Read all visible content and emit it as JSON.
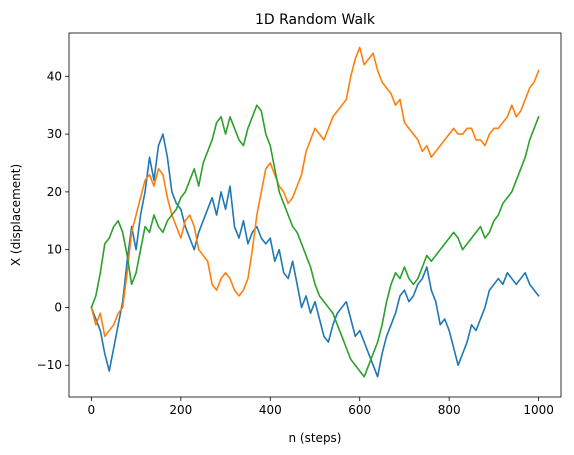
{
  "chart_data": {
    "type": "line",
    "title": "1D Random Walk",
    "xlabel": "n (steps)",
    "ylabel": "X (displacement)",
    "xlim": [
      -50,
      1050
    ],
    "ylim": [
      -15.5,
      47.5
    ],
    "xticks": [
      0,
      200,
      400,
      600,
      800,
      1000
    ],
    "yticks": [
      -10,
      0,
      10,
      20,
      30,
      40
    ],
    "ytick_labels": [
      "−10",
      "0",
      "10",
      "20",
      "30",
      "40"
    ],
    "grid": false,
    "legend": "none",
    "series": [
      {
        "color": "#1f77b4",
        "x": [
          0,
          10,
          20,
          30,
          40,
          50,
          60,
          70,
          80,
          90,
          100,
          110,
          120,
          130,
          140,
          150,
          160,
          170,
          180,
          190,
          200,
          210,
          220,
          230,
          240,
          250,
          260,
          270,
          280,
          290,
          300,
          310,
          320,
          330,
          340,
          350,
          360,
          370,
          380,
          390,
          400,
          410,
          420,
          430,
          440,
          450,
          460,
          470,
          480,
          490,
          500,
          510,
          520,
          530,
          540,
          550,
          560,
          570,
          580,
          590,
          600,
          610,
          620,
          630,
          640,
          650,
          660,
          670,
          680,
          690,
          700,
          710,
          720,
          730,
          740,
          750,
          760,
          770,
          780,
          790,
          800,
          810,
          820,
          830,
          840,
          850,
          860,
          870,
          880,
          890,
          900,
          910,
          920,
          930,
          940,
          950,
          960,
          970,
          980,
          990,
          1000
        ],
        "y": [
          0,
          -2,
          -4,
          -8,
          -11,
          -7,
          -3,
          1,
          8,
          14,
          10,
          16,
          20,
          26,
          22,
          28,
          30,
          26,
          20,
          18,
          17,
          14,
          12,
          10,
          13,
          15,
          17,
          19,
          16,
          20,
          17,
          21,
          14,
          12,
          15,
          11,
          13,
          14,
          12,
          11,
          12,
          8,
          10,
          6,
          5,
          8,
          4,
          0,
          2,
          -1,
          1,
          -2,
          -5,
          -6,
          -3,
          -1,
          0,
          1,
          -2,
          -5,
          -4,
          -6,
          -8,
          -10,
          -12,
          -8,
          -5,
          -3,
          -1,
          2,
          3,
          1,
          2,
          4,
          5,
          7,
          3,
          1,
          -3,
          -2,
          -4,
          -7,
          -10,
          -8,
          -6,
          -3,
          -4,
          -2,
          0,
          3,
          4,
          5,
          4,
          6,
          5,
          4,
          5,
          6,
          4,
          3,
          2
        ]
      },
      {
        "color": "#ff7f0e",
        "x": [
          0,
          10,
          20,
          30,
          40,
          50,
          60,
          70,
          80,
          90,
          100,
          110,
          120,
          130,
          140,
          150,
          160,
          170,
          180,
          190,
          200,
          210,
          220,
          230,
          240,
          250,
          260,
          270,
          280,
          290,
          300,
          310,
          320,
          330,
          340,
          350,
          360,
          370,
          380,
          390,
          400,
          410,
          420,
          430,
          440,
          450,
          460,
          470,
          480,
          490,
          500,
          510,
          520,
          530,
          540,
          550,
          560,
          570,
          580,
          590,
          600,
          610,
          620,
          630,
          640,
          650,
          660,
          670,
          680,
          690,
          700,
          710,
          720,
          730,
          740,
          750,
          760,
          770,
          780,
          790,
          800,
          810,
          820,
          830,
          840,
          850,
          860,
          870,
          880,
          890,
          900,
          910,
          920,
          930,
          940,
          950,
          960,
          970,
          980,
          990,
          1000
        ],
        "y": [
          0,
          -3,
          -1,
          -5,
          -4,
          -3,
          -1,
          0,
          6,
          13,
          16,
          19,
          22,
          23,
          21,
          24,
          23,
          19,
          16,
          14,
          12,
          15,
          16,
          14,
          10,
          9,
          8,
          4,
          3,
          5,
          6,
          5,
          3,
          2,
          3,
          5,
          10,
          16,
          20,
          24,
          25,
          23,
          21,
          20,
          18,
          19,
          21,
          23,
          27,
          29,
          31,
          30,
          29,
          31,
          33,
          34,
          35,
          36,
          40,
          43,
          45,
          42,
          43,
          44,
          41,
          39,
          38,
          37,
          35,
          36,
          32,
          31,
          30,
          29,
          27,
          28,
          26,
          27,
          28,
          29,
          30,
          31,
          30,
          30,
          31,
          31,
          29,
          29,
          28,
          30,
          31,
          31,
          32,
          33,
          35,
          33,
          34,
          36,
          38,
          39,
          41
        ]
      },
      {
        "color": "#2ca02c",
        "x": [
          0,
          10,
          20,
          30,
          40,
          50,
          60,
          70,
          80,
          90,
          100,
          110,
          120,
          130,
          140,
          150,
          160,
          170,
          180,
          190,
          200,
          210,
          220,
          230,
          240,
          250,
          260,
          270,
          280,
          290,
          300,
          310,
          320,
          330,
          340,
          350,
          360,
          370,
          380,
          390,
          400,
          410,
          420,
          430,
          440,
          450,
          460,
          470,
          480,
          490,
          500,
          510,
          520,
          530,
          540,
          550,
          560,
          570,
          580,
          590,
          600,
          610,
          620,
          630,
          640,
          650,
          660,
          670,
          680,
          690,
          700,
          710,
          720,
          730,
          740,
          750,
          760,
          770,
          780,
          790,
          800,
          810,
          820,
          830,
          840,
          850,
          860,
          870,
          880,
          890,
          900,
          910,
          920,
          930,
          940,
          950,
          960,
          970,
          980,
          990,
          1000
        ],
        "y": [
          0,
          2,
          6,
          11,
          12,
          14,
          15,
          13,
          9,
          4,
          6,
          10,
          14,
          13,
          16,
          14,
          13,
          15,
          16,
          17,
          19,
          20,
          22,
          24,
          21,
          25,
          27,
          29,
          32,
          33,
          30,
          33,
          31,
          29,
          28,
          31,
          33,
          35,
          34,
          30,
          28,
          24,
          20,
          18,
          16,
          14,
          13,
          11,
          9,
          7,
          4,
          2,
          1,
          0,
          -1,
          -3,
          -5,
          -7,
          -9,
          -10,
          -11,
          -12,
          -10,
          -8,
          -6,
          -3,
          1,
          4,
          6,
          5,
          7,
          5,
          4,
          5,
          7,
          9,
          8,
          9,
          10,
          11,
          12,
          13,
          12,
          10,
          11,
          12,
          13,
          14,
          12,
          13,
          15,
          16,
          18,
          19,
          20,
          22,
          24,
          26,
          29,
          31,
          33
        ]
      }
    ]
  }
}
